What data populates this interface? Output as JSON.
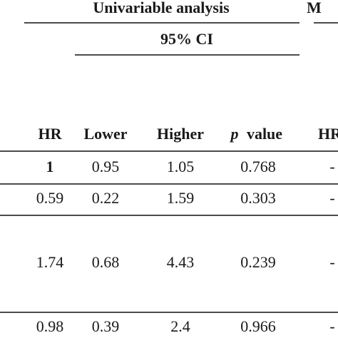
{
  "header": {
    "title": "Univariable analysis",
    "right_title": "M",
    "ci_label": "95% CI"
  },
  "table": {
    "columns": [
      "HR",
      "Lower",
      "Higher",
      "value",
      "HR"
    ],
    "p_symbol": "p",
    "rows": [
      [
        "1",
        "0.95",
        "1.05",
        "0.768",
        "-"
      ],
      [
        "0.59",
        "0.22",
        "1.59",
        "0.303",
        "-"
      ],
      [
        "1.74",
        "0.68",
        "4.43",
        "0.239",
        "-"
      ],
      [
        "0.98",
        "0.39",
        "2.4",
        "0.966",
        "-"
      ]
    ]
  }
}
